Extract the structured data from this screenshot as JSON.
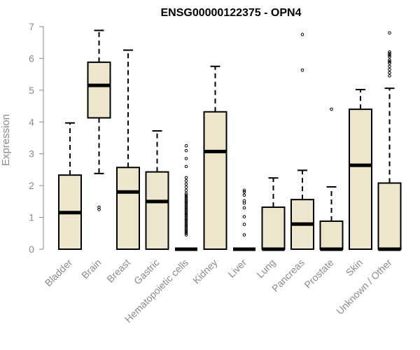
{
  "chart_data": {
    "type": "boxplot",
    "title": "ENSG00000122375 - OPN4",
    "ylabel": "Expression",
    "xlabel": "",
    "ylim": [
      0,
      7
    ],
    "yticks": [
      "0",
      "1",
      "2",
      "3",
      "4",
      "5",
      "6",
      "7"
    ],
    "grid": false,
    "legend": "none",
    "box_fill": "#ede6cc",
    "box_stroke": "#000000",
    "categories": [
      "Bladder",
      "Brain",
      "Breast",
      "Gastric",
      "Hematopoietic cells",
      "Kidney",
      "Liver",
      "Lung",
      "Pancreas",
      "Prostate",
      "Skin",
      "Unknown / Other"
    ],
    "boxes": [
      {
        "q1": 0,
        "median": 1.15,
        "q3": 2.33,
        "whisker_low": 0,
        "whisker_high": 3.97,
        "outliers": []
      },
      {
        "q1": 4.13,
        "median": 5.15,
        "q3": 5.88,
        "whisker_low": 2.38,
        "whisker_high": 6.88,
        "outliers": [
          1.25,
          1.32
        ]
      },
      {
        "q1": 0,
        "median": 1.8,
        "q3": 2.57,
        "whisker_low": 0,
        "whisker_high": 6.26,
        "outliers": []
      },
      {
        "q1": 0,
        "median": 1.5,
        "q3": 2.43,
        "whisker_low": 0,
        "whisker_high": 3.72,
        "outliers": []
      },
      {
        "q1": 0,
        "median": 0,
        "q3": 0,
        "whisker_low": 0,
        "whisker_high": 0,
        "outliers": [
          0.45,
          0.5,
          0.55,
          0.6,
          0.65,
          0.7,
          0.75,
          0.8,
          0.85,
          0.9,
          0.95,
          1.0,
          1.05,
          1.1,
          1.15,
          1.2,
          1.25,
          1.3,
          1.35,
          1.4,
          1.45,
          1.5,
          1.55,
          1.6,
          1.65,
          1.7,
          1.75,
          1.85,
          1.95,
          2.05,
          2.15,
          2.25,
          2.6,
          2.85,
          3.1,
          3.25
        ]
      },
      {
        "q1": 0,
        "median": 3.07,
        "q3": 4.32,
        "whisker_low": 0,
        "whisker_high": 5.75,
        "outliers": []
      },
      {
        "q1": 0,
        "median": 0,
        "q3": 0,
        "whisker_low": 0,
        "whisker_high": 0,
        "outliers": [
          0.45,
          0.78,
          1.02,
          1.3,
          1.45,
          1.52,
          1.7,
          1.8,
          1.85
        ]
      },
      {
        "q1": 0,
        "median": 0,
        "q3": 1.32,
        "whisker_low": 0,
        "whisker_high": 2.24,
        "outliers": []
      },
      {
        "q1": 0,
        "median": 0.79,
        "q3": 1.56,
        "whisker_low": 0,
        "whisker_high": 2.48,
        "outliers": [
          5.63,
          6.75
        ]
      },
      {
        "q1": 0,
        "median": 0,
        "q3": 0.88,
        "whisker_low": 0,
        "whisker_high": 1.96,
        "outliers": [
          4.4
        ]
      },
      {
        "q1": 0,
        "median": 2.64,
        "q3": 4.4,
        "whisker_low": 0,
        "whisker_high": 5.02,
        "outliers": []
      },
      {
        "q1": 0,
        "median": 0,
        "q3": 2.08,
        "whisker_low": 0,
        "whisker_high": 5.06,
        "outliers": [
          5.45,
          5.55,
          5.65,
          5.75,
          5.85,
          5.9,
          5.95,
          6.05,
          6.1,
          6.15,
          6.2,
          6.8
        ]
      }
    ]
  }
}
